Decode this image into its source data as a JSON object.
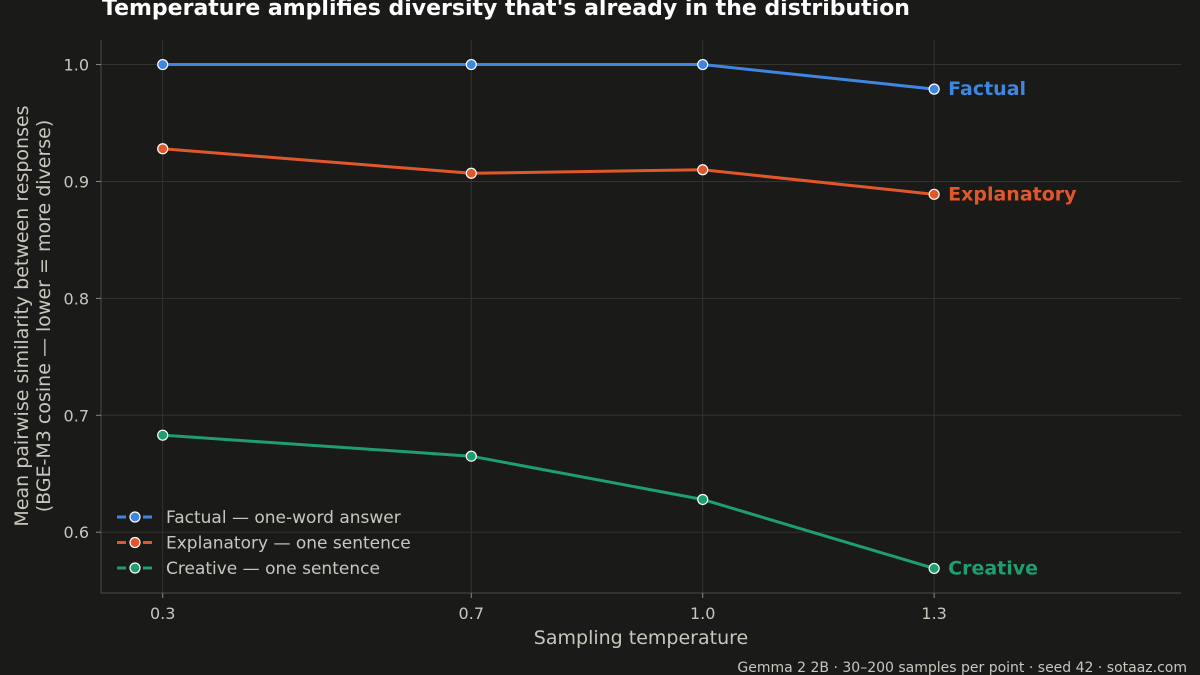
{
  "chart_data": {
    "type": "line",
    "title": "Temperature amplifies diversity that's already in the distribution",
    "xlabel": "Sampling temperature",
    "ylabel": [
      "Mean pairwise similarity between responses",
      "(BGE-M3 cosine — lower = more diverse)"
    ],
    "x": [
      0.3,
      0.7,
      1.0,
      1.3
    ],
    "x_tick_labels": [
      "0.3",
      "0.7",
      "1.0",
      "1.3"
    ],
    "xlim": [
      0.22,
      1.62
    ],
    "y_ticks": [
      0.6,
      0.7,
      0.8,
      0.9,
      1.0
    ],
    "y_tick_labels": [
      "0.6",
      "0.7",
      "0.8",
      "0.9",
      "1.0"
    ],
    "ylim": [
      0.548,
      1.021
    ],
    "grid": true,
    "legend_position": "bottom-left",
    "footnote": "Gemma 2 2B · 30–200 samples per point · seed 42 · sotaaz.com",
    "series": [
      {
        "name": "Factual — one-word answer",
        "end_label": "Factual",
        "color": "#3f86e0",
        "values": [
          1.0,
          1.0,
          1.0,
          0.979
        ]
      },
      {
        "name": "Explanatory — one sentence",
        "end_label": "Explanatory",
        "color": "#e0582a",
        "values": [
          0.928,
          0.907,
          0.91,
          0.889
        ]
      },
      {
        "name": "Creative — one sentence",
        "end_label": "Creative",
        "color": "#1f9e6e",
        "values": [
          0.683,
          0.665,
          0.628,
          0.569
        ]
      }
    ]
  }
}
